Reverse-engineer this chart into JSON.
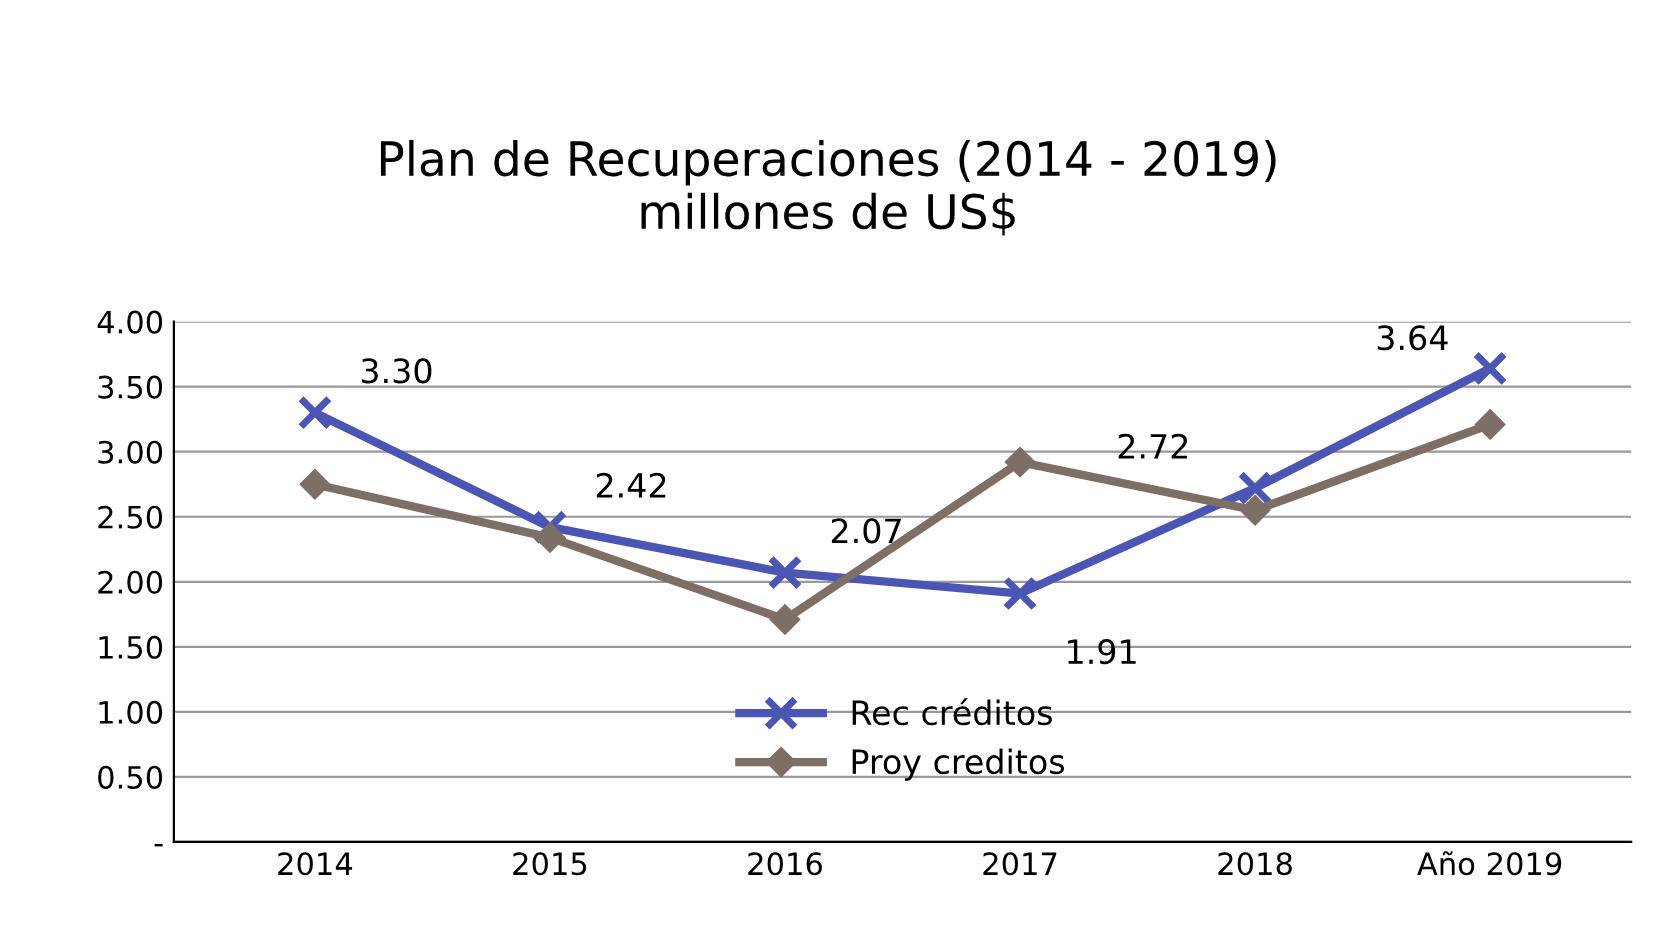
{
  "chart_data": {
    "type": "line",
    "title": "Plan de Recuperaciones (2014 - 2019)\nmillones de US$",
    "categories": [
      "2014",
      "2015",
      "2016",
      "2017",
      "2018",
      "Año 2019"
    ],
    "series": [
      {
        "name": "Rec créditos",
        "color": "#4b56b4",
        "marker": "cross",
        "values": [
          3.3,
          2.42,
          2.07,
          1.91,
          2.72,
          3.64
        ],
        "value_labels": [
          "3.30",
          "2.42",
          "2.07",
          "1.91",
          "2.72",
          "3.64"
        ]
      },
      {
        "name": "Proy creditos",
        "color": "#7d6e66",
        "marker": "diamond",
        "values": [
          2.75,
          2.34,
          1.71,
          2.92,
          2.55,
          3.21
        ]
      }
    ],
    "ylim": [
      0,
      4
    ],
    "yticks": [
      {
        "value": 0,
        "label": "-"
      },
      {
        "value": 0.5,
        "label": "0.50"
      },
      {
        "value": 1,
        "label": "1.00"
      },
      {
        "value": 1.5,
        "label": "1.50"
      },
      {
        "value": 2,
        "label": "2.00"
      },
      {
        "value": 2.5,
        "label": "2.50"
      },
      {
        "value": 3,
        "label": "3.00"
      },
      {
        "value": 3.5,
        "label": "3.50"
      },
      {
        "value": 4,
        "label": "4.00"
      }
    ],
    "grid": "y",
    "legend": "bottom",
    "line_style": "solid"
  }
}
